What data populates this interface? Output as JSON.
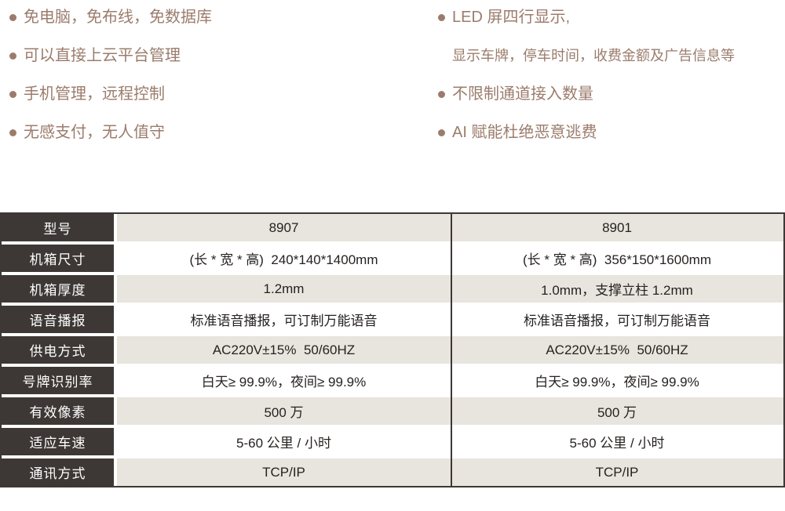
{
  "features": {
    "left": [
      "免电脑，免布线，免数据库",
      "可以直接上云平台管理",
      "手机管理，远程控制",
      "无感支付，无人值守"
    ],
    "right": {
      "item1": "LED 屏四行显示,",
      "item1_sub": "显示车牌，停车时间，收费金额及广告信息等",
      "item2": "不限制通道接入数量",
      "item3": "AI 赋能杜绝恶意逃费"
    }
  },
  "table": {
    "rows": [
      {
        "label": "型号",
        "values": [
          "8907",
          "8901"
        ]
      },
      {
        "label": "机箱尺寸",
        "values": [
          "(长 * 宽 * 高)  240*140*1400mm",
          "(长 * 宽 * 高)  356*150*1600mm"
        ]
      },
      {
        "label": "机箱厚度",
        "values": [
          "1.2mm",
          "1.0mm，支撑立柱 1.2mm"
        ]
      },
      {
        "label": "语音播报",
        "values": [
          "标准语音播报，可订制万能语音",
          "标准语音播报，可订制万能语音"
        ]
      },
      {
        "label": "供电方式",
        "values": [
          "AC220V±15%  50/60HZ",
          "AC220V±15%  50/60HZ"
        ]
      },
      {
        "label": "号牌识别率",
        "values": [
          "白天≥ 99.9%，夜间≥ 99.9%",
          "白天≥ 99.9%，夜间≥ 99.9%"
        ]
      },
      {
        "label": "有效像素",
        "values": [
          "500 万",
          "500 万"
        ]
      },
      {
        "label": "适应车速",
        "values": [
          "5-60 公里 / 小时",
          "5-60 公里 / 小时"
        ]
      },
      {
        "label": "通讯方式",
        "values": [
          "TCP/IP",
          "TCP/IP"
        ]
      }
    ]
  },
  "colors": {
    "accent_text": "#9b7c6c",
    "header_cell_bg": "#3d3836",
    "row_alt_bg": "#e8e4de",
    "table_border": "#3d3836",
    "header_text": "#ffffff",
    "value_text": "#262220"
  }
}
